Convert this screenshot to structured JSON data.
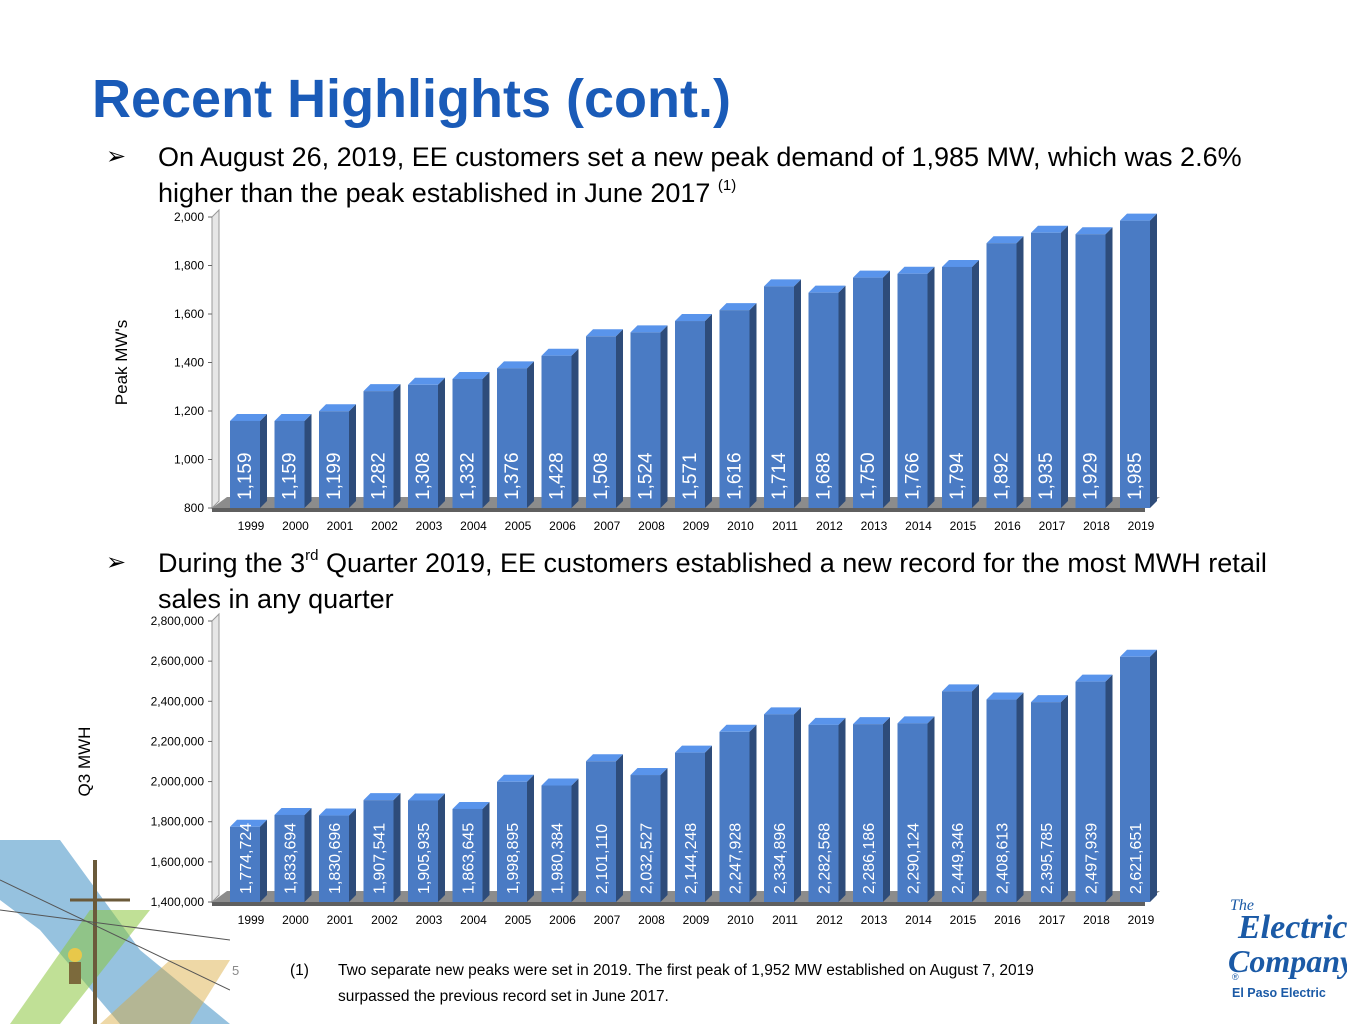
{
  "page": {
    "title": "Recent Highlights (cont.)",
    "page_number": "5",
    "brand_color": "#1a5bb8",
    "bar_color": "#4a7bc4"
  },
  "bullets": [
    {
      "marker": "➢",
      "text_before_sup": "On August 26, 2019, EE customers set a new peak demand of 1,985 MW, which was 2.6% higher than the peak established in June 2017 ",
      "sup": "(1)",
      "text_after_sup": ""
    },
    {
      "marker": "➢",
      "text_before_sup": "During the 3",
      "sup": "rd",
      "text_after_sup": " Quarter 2019, EE customers established a new record for the most MWH retail sales in any quarter"
    }
  ],
  "chart_data": [
    {
      "type": "bar",
      "ylabel": "Peak MW's",
      "xlabel": "",
      "ylim": [
        800,
        2000
      ],
      "yticks": [
        "800",
        "1,000",
        "1,200",
        "1,400",
        "1,600",
        "1,800",
        "2,000"
      ],
      "categories": [
        "1999",
        "2000",
        "2001",
        "2002",
        "2003",
        "2004",
        "2005",
        "2006",
        "2007",
        "2008",
        "2009",
        "2010",
        "2011",
        "2012",
        "2013",
        "2014",
        "2015",
        "2016",
        "2017",
        "2018",
        "2019"
      ],
      "values": [
        1159,
        1159,
        1199,
        1282,
        1308,
        1332,
        1376,
        1428,
        1508,
        1524,
        1571,
        1616,
        1714,
        1688,
        1750,
        1766,
        1794,
        1892,
        1935,
        1929,
        1985
      ],
      "value_labels": [
        "1,159",
        "1,159",
        "1,199",
        "1,282",
        "1,308",
        "1,332",
        "1,376",
        "1,428",
        "1,508",
        "1,524",
        "1,571",
        "1,616",
        "1,714",
        "1,688",
        "1,750",
        "1,766",
        "1,794",
        "1,892",
        "1,935",
        "1,929",
        "1,985"
      ]
    },
    {
      "type": "bar",
      "ylabel": "Q3 MWH",
      "xlabel": "",
      "ylim": [
        1400000,
        2800000
      ],
      "yticks": [
        "1,400,000",
        "1,600,000",
        "1,800,000",
        "2,000,000",
        "2,200,000",
        "2,400,000",
        "2,600,000",
        "2,800,000"
      ],
      "categories": [
        "1999",
        "2000",
        "2001",
        "2002",
        "2003",
        "2004",
        "2005",
        "2006",
        "2007",
        "2008",
        "2009",
        "2010",
        "2011",
        "2012",
        "2013",
        "2014",
        "2015",
        "2016",
        "2017",
        "2018",
        "2019"
      ],
      "values": [
        1774724,
        1833694,
        1830696,
        1907541,
        1905935,
        1863645,
        1998895,
        1980384,
        2101110,
        2032527,
        2144248,
        2247928,
        2334896,
        2282568,
        2286186,
        2290124,
        2449346,
        2408613,
        2395785,
        2497939,
        2621651
      ],
      "value_labels": [
        "1,774,724",
        "1,833,694",
        "1,830,696",
        "1,907,541",
        "1,905,935",
        "1,863,645",
        "1,998,895",
        "1,980,384",
        "2,101,110",
        "2,032,527",
        "2,144,248",
        "2,247,928",
        "2,334,896",
        "2,282,568",
        "2,286,186",
        "2,290,124",
        "2,449,346",
        "2,408,613",
        "2,395,785",
        "2,497,939",
        "2,621,651"
      ]
    }
  ],
  "footnote": {
    "marker": "(1)",
    "text": "Two separate new peaks were set in 2019.  The first peak of 1,952 MW established on August 7, 2019 surpassed the previous record set in June 2017."
  },
  "logo": {
    "line1": "The",
    "line2": "Electric",
    "line3": "Company",
    "registered": "®",
    "subtitle": "El Paso Electric"
  }
}
